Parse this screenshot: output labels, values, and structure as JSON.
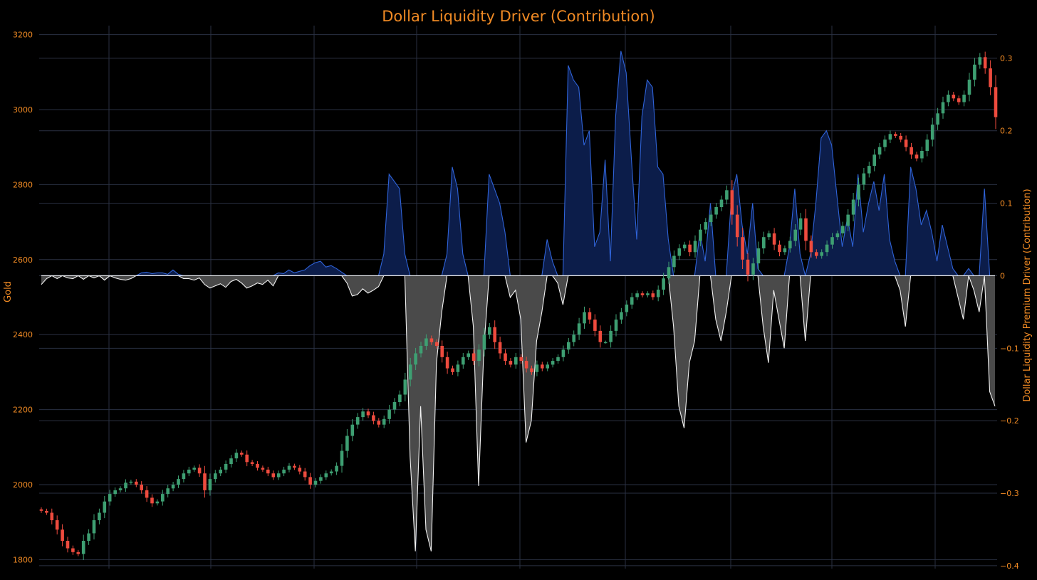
{
  "colors": {
    "background": "#000000",
    "grid": "#2a3142",
    "title": "#f08a24",
    "axis_text": "#f08a24",
    "up_candle": "#3e9f72",
    "down_candle": "#ee4b3e",
    "positive_line": "#2f63d8",
    "positive_fill": "#0c1d4a",
    "negative_line": "#f2f2f2",
    "negative_fill": "#4a4a4a"
  },
  "chart_data": {
    "type": "candlestick_with_area",
    "title": "Dollar Liquidity Driver (Contribution)",
    "ylabel": "Gold",
    "y2label": "Dollar Liquidity Premium Driver (Contribution)",
    "ylim": [
      1776,
      3224
    ],
    "y2lim": [
      -0.404,
      0.345
    ],
    "yticks": [
      1800,
      2000,
      2200,
      2400,
      2600,
      2800,
      3000,
      3200
    ],
    "y2ticks": [
      -0.4,
      -0.3,
      -0.2,
      -0.1,
      0,
      0.1,
      0.2,
      0.3
    ],
    "y2tick_labels": [
      "−0.4",
      "−0.3",
      "−0.2",
      "−0.1",
      "0",
      "0.1",
      "0.2",
      "0.3"
    ],
    "grid": true,
    "legend": "none",
    "series": [
      {
        "kind": "candlestick",
        "close": [
          1930,
          1925,
          1905,
          1880,
          1850,
          1830,
          1820,
          1815,
          1850,
          1870,
          1905,
          1925,
          1955,
          1975,
          1985,
          1990,
          2005,
          2008,
          2000,
          1985,
          1965,
          1950,
          1955,
          1975,
          1990,
          2000,
          2015,
          2030,
          2040,
          2045,
          2030,
          1985,
          2015,
          2030,
          2040,
          2055,
          2070,
          2085,
          2080,
          2060,
          2055,
          2045,
          2040,
          2030,
          2020,
          2030,
          2040,
          2050,
          2045,
          2035,
          2020,
          2000,
          2010,
          2020,
          2030,
          2035,
          2050,
          2090,
          2130,
          2160,
          2180,
          2195,
          2185,
          2170,
          2160,
          2175,
          2200,
          2220,
          2240,
          2280,
          2320,
          2350,
          2370,
          2390,
          2380,
          2370,
          2340,
          2310,
          2300,
          2320,
          2340,
          2350,
          2330,
          2360,
          2400,
          2420,
          2380,
          2350,
          2330,
          2320,
          2340,
          2330,
          2310,
          2300,
          2320,
          2310,
          2320,
          2330,
          2340,
          2360,
          2380,
          2400,
          2430,
          2460,
          2440,
          2410,
          2380,
          2380,
          2410,
          2440,
          2460,
          2480,
          2500,
          2510,
          2505,
          2510,
          2500,
          2520,
          2550,
          2580,
          2610,
          2630,
          2640,
          2620,
          2650,
          2680,
          2700,
          2720,
          2740,
          2760,
          2785,
          2720,
          2660,
          2600,
          2560,
          2590,
          2630,
          2660,
          2670,
          2640,
          2620,
          2630,
          2650,
          2680,
          2710,
          2650,
          2620,
          2610,
          2620,
          2640,
          2660,
          2670,
          2690,
          2720,
          2760,
          2800,
          2830,
          2850,
          2880,
          2900,
          2920,
          2935,
          2930,
          2920,
          2900,
          2880,
          2870,
          2890,
          2920,
          2960,
          2990,
          3020,
          3040,
          3030,
          3020,
          3040,
          3080,
          3120,
          3140,
          3110,
          3060,
          2980
        ]
      },
      {
        "kind": "area",
        "axis": "y2",
        "values": [
          -0.012,
          -0.004,
          0,
          -0.004,
          0,
          -0.003,
          -0.004,
          0,
          -0.005,
          0,
          -0.003,
          0,
          -0.006,
          0,
          -0.003,
          -0.005,
          -0.006,
          -0.004,
          0,
          0.004,
          0.005,
          0.003,
          0.004,
          0.004,
          0.002,
          0.008,
          0.002,
          -0.004,
          -0.004,
          -0.006,
          -0.003,
          -0.012,
          -0.017,
          -0.014,
          -0.011,
          -0.016,
          -0.008,
          -0.005,
          -0.01,
          -0.017,
          -0.014,
          -0.01,
          -0.012,
          -0.006,
          -0.014,
          0.004,
          0.003,
          0.008,
          0.004,
          0.006,
          0.008,
          0.014,
          0.018,
          0.02,
          0.012,
          0.014,
          0.01,
          0.005,
          -0.01,
          -0.028,
          -0.026,
          -0.018,
          -0.024,
          -0.02,
          -0.015,
          0.03,
          0.14,
          0.13,
          0.12,
          0.03,
          -0.25,
          -0.38,
          -0.18,
          -0.35,
          -0.38,
          -0.12,
          -0.05,
          0.03,
          0.15,
          0.12,
          0.03,
          0,
          -0.07,
          -0.29,
          -0.1,
          0.14,
          0.12,
          0.1,
          0.06,
          -0.03,
          -0.02,
          -0.06,
          -0.23,
          -0.2,
          -0.09,
          -0.05,
          0.05,
          0.02,
          -0.01,
          -0.04,
          0.29,
          0.27,
          0.26,
          0.18,
          0.2,
          0.04,
          0.06,
          0.16,
          0.02,
          0.22,
          0.31,
          0.28,
          0.16,
          0.05,
          0.22,
          0.27,
          0.26,
          0.15,
          0.14,
          0.05,
          -0.07,
          -0.18,
          -0.21,
          -0.12,
          -0.09,
          0.06,
          0.02,
          0.1,
          -0.06,
          -0.09,
          -0.05,
          0.11,
          0.14,
          0.07,
          0.03,
          0.1,
          0.01,
          -0.07,
          -0.12,
          -0.02,
          -0.06,
          -0.1,
          0.04,
          0.12,
          0.03,
          -0.09,
          0.03,
          0.1,
          0.19,
          0.2,
          0.18,
          0.11,
          0.04,
          0.08,
          0.04,
          0.14,
          0.06,
          0.1,
          0.13,
          0.09,
          0.14,
          0.05,
          0.02,
          -0.02,
          -0.07,
          0.15,
          0.12,
          0.07,
          0.09,
          0.06,
          0.02,
          0.07,
          0.04,
          0.01,
          -0.03,
          -0.06,
          0.01,
          -0.02,
          -0.05,
          0.12,
          -0.16,
          -0.18
        ]
      }
    ]
  }
}
